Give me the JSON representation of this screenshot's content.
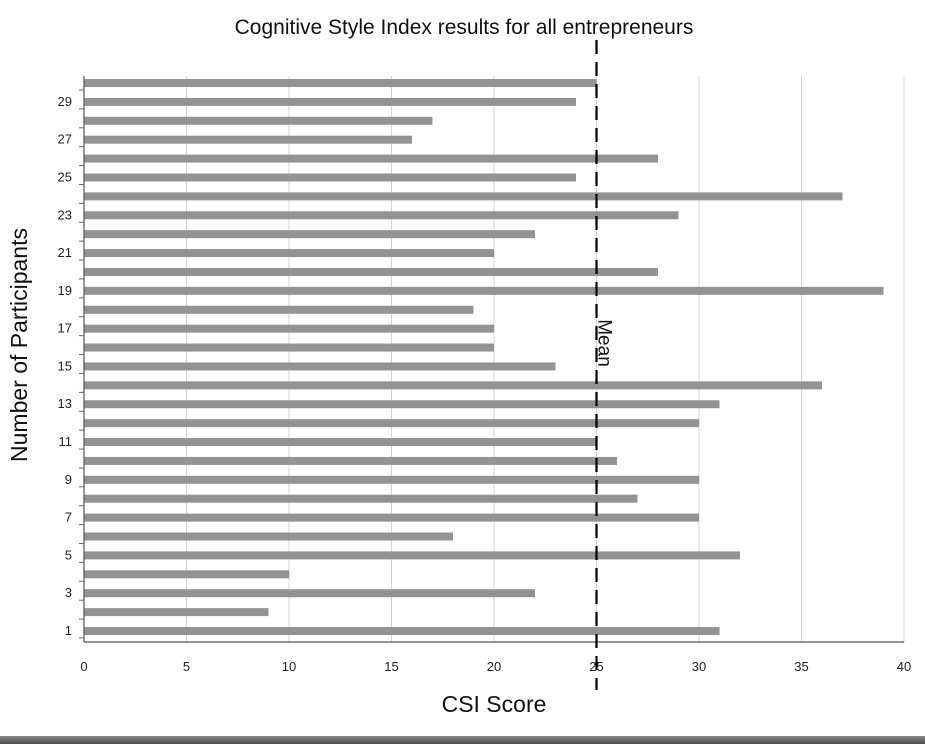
{
  "chart_data": {
    "type": "bar",
    "orientation": "horizontal",
    "title": "Cognitive Style Index results for all entrepreneurs",
    "xlabel": "CSI Score",
    "ylabel": "Number of Participants",
    "xlim": [
      0,
      40
    ],
    "x_ticks": [
      "0",
      "5",
      "10",
      "15",
      "20",
      "25",
      "30",
      "35",
      "40"
    ],
    "y_tick_labels": [
      "1",
      "3",
      "5",
      "7",
      "9",
      "11",
      "13",
      "15",
      "17",
      "19",
      "21",
      "23",
      "25",
      "27",
      "29"
    ],
    "categories": [
      1,
      2,
      3,
      4,
      5,
      6,
      7,
      8,
      9,
      10,
      11,
      12,
      13,
      14,
      15,
      16,
      17,
      18,
      19,
      20,
      21,
      22,
      23,
      24,
      25,
      26,
      27,
      28,
      29,
      30
    ],
    "values": [
      31,
      9,
      22,
      10,
      32,
      18,
      30,
      27,
      30,
      26,
      25,
      30,
      31,
      36,
      23,
      20,
      20,
      19,
      39,
      28,
      20,
      22,
      29,
      37,
      24,
      28,
      16,
      17,
      24,
      25
    ],
    "bar_color": "#939393",
    "grid": true,
    "mean_line": {
      "value": 25,
      "label": "Mean",
      "style": "dashed"
    }
  }
}
